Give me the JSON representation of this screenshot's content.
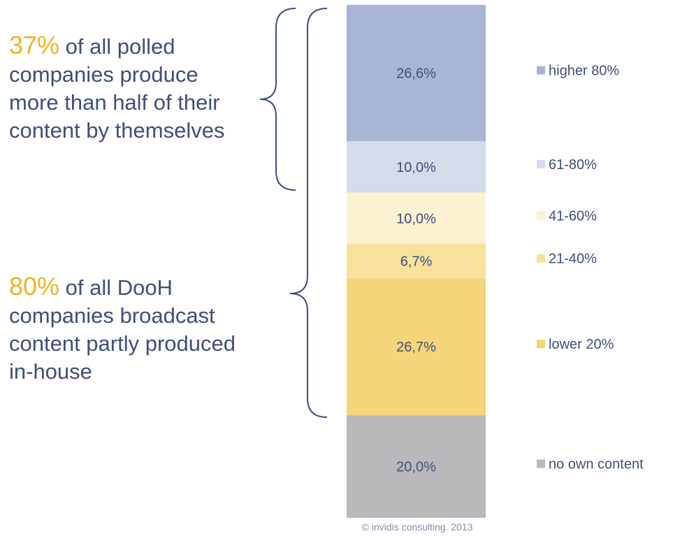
{
  "callouts": [
    {
      "pct": "37%",
      "text": " of all polled companies produce more than half of their content by themselves"
    },
    {
      "pct": "80%",
      "text": " of all DooH companies broadcast content partly produced in-house"
    }
  ],
  "source": "© invidis consulting. 2013",
  "chart_data": {
    "type": "bar",
    "stacked": true,
    "orientation": "vertical",
    "categories": [
      "higher 80%",
      "61-80%",
      "41-60%",
      "21-40%",
      "lower 20%",
      "no own content"
    ],
    "values": [
      26.6,
      10.0,
      10.0,
      6.7,
      26.7,
      20.0
    ],
    "labels": [
      "26,6%",
      "10,0%",
      "10,0%",
      "6,7%",
      "26,7%",
      "20,0%"
    ],
    "colors": [
      "#a9b5d4",
      "#d5dbeb",
      "#fcf1d0",
      "#f8e19b",
      "#f5d57a",
      "#b9b9bb"
    ],
    "legend": "right",
    "grid": false
  }
}
